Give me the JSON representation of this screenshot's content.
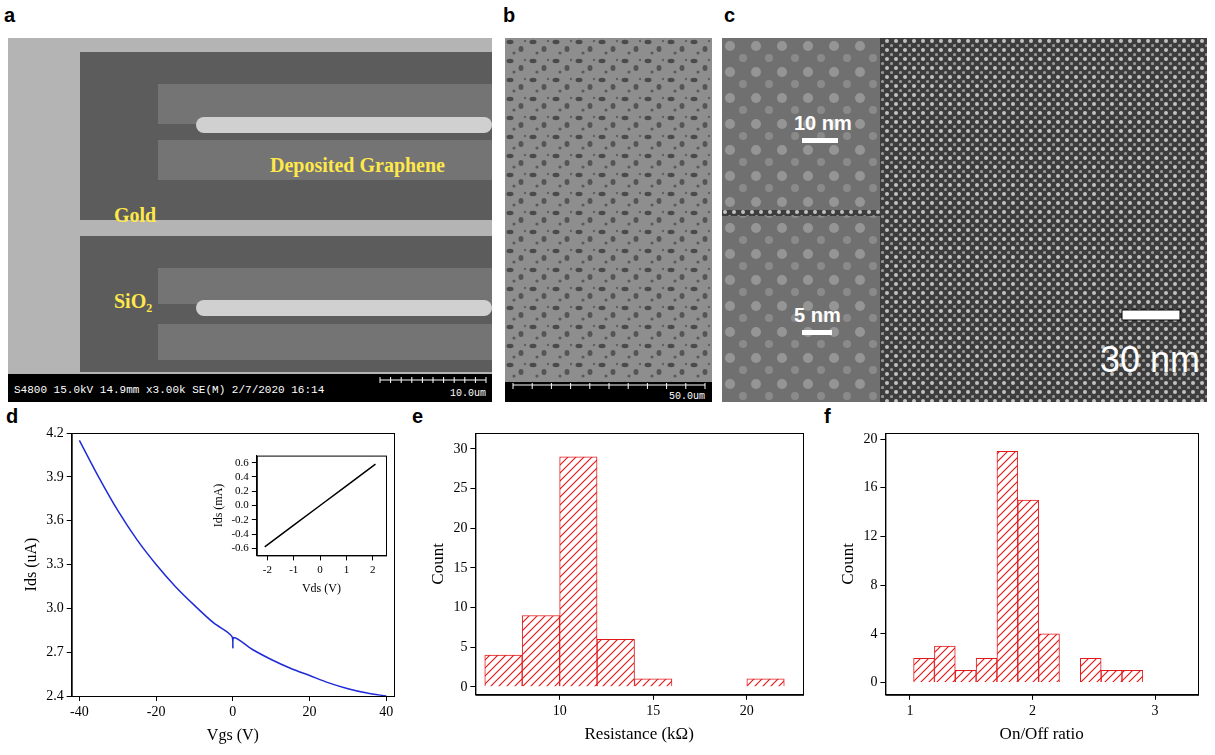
{
  "images": [
    {
      "panel": "a",
      "labels": [
        "Deposited Graphene",
        "Gold",
        "SiO₂"
      ],
      "info_bar": "S4800 15.0kV 14.9mm x3.00k SE(M) 2/7/2020 16:14",
      "scale_label": "10.0um"
    },
    {
      "panel": "b",
      "scale_label": "50.0um"
    },
    {
      "panel": "c",
      "scale_label": "30 nm",
      "insets": [
        {
          "scale_label": "10 nm"
        },
        {
          "scale_label": "5 nm"
        }
      ]
    }
  ],
  "chart_data": [
    {
      "panel": "d",
      "type": "line",
      "x_label": "Vgs (V)",
      "y_label": "Ids (uA)",
      "x": [
        -40,
        -35,
        -30,
        -25,
        -20,
        -15,
        -10,
        -5,
        -0.3,
        0,
        0.3,
        5,
        10,
        15,
        20,
        25,
        30,
        35,
        40
      ],
      "values": [
        4.15,
        3.9,
        3.67,
        3.47,
        3.3,
        3.15,
        3.02,
        2.9,
        2.81,
        2.73,
        2.8,
        2.72,
        2.65,
        2.59,
        2.54,
        2.49,
        2.45,
        2.42,
        2.4
      ],
      "color": "#1f2bd6",
      "xlim": [
        -42,
        42
      ],
      "xticks": [
        -40,
        -20,
        0,
        20,
        40
      ],
      "ylim": [
        2.4,
        4.2
      ],
      "yticks": [
        2.4,
        2.7,
        {
          "value": 3,
          "label": "3.0"
        },
        3.3,
        3.6,
        3.9,
        4.2
      ],
      "grid": false,
      "inset": {
        "type": "line",
        "x_label": "Vds (V)",
        "y_label": "Ids (mA)",
        "x": [
          -2.1,
          0,
          2.1
        ],
        "values": [
          -0.58,
          0,
          0.58
        ],
        "color": "#000000",
        "xlim": [
          -2.4,
          2.5
        ],
        "xticks": [
          -2,
          -1,
          0,
          1,
          2
        ],
        "ylim": [
          -0.7,
          0.7
        ],
        "yticks": [
          -0.6,
          -0.4,
          -0.2,
          {
            "value": 0,
            "label": "0.0"
          },
          0.2,
          0.4,
          0.6
        ],
        "grid": false
      }
    },
    {
      "panel": "e",
      "type": "histogram",
      "x_label": "Resistance (kΩ)",
      "y_label": "Count",
      "bins": [
        6,
        8,
        10,
        12,
        14,
        16,
        18,
        20,
        22
      ],
      "values": [
        4,
        9,
        29,
        6,
        1,
        0,
        0,
        1
      ],
      "color": "#e31a1c",
      "xlim": [
        5.5,
        23
      ],
      "xticks": [
        10,
        15,
        20
      ],
      "ylim": [
        -1,
        32
      ],
      "yticks": [
        0,
        5,
        10,
        15,
        20,
        25,
        30
      ],
      "grid": false
    },
    {
      "panel": "f",
      "type": "histogram",
      "x_label": "On/Off ratio",
      "y_label": "Count",
      "bins": [
        0.86,
        1.03,
        1.2,
        1.37,
        1.54,
        1.71,
        1.88,
        2.05,
        2.22,
        2.39,
        2.56,
        2.73,
        2.9,
        3.07
      ],
      "values": [
        0,
        2,
        3,
        1,
        2,
        19,
        15,
        4,
        0,
        2,
        1,
        1,
        0
      ],
      "color": "#e31a1c",
      "xlim": [
        0.8,
        3.35
      ],
      "xticks": [
        1,
        2,
        3
      ],
      "ylim": [
        -1,
        20.5
      ],
      "yticks": [
        0,
        4,
        8,
        12,
        16,
        20
      ],
      "grid": false
    }
  ]
}
